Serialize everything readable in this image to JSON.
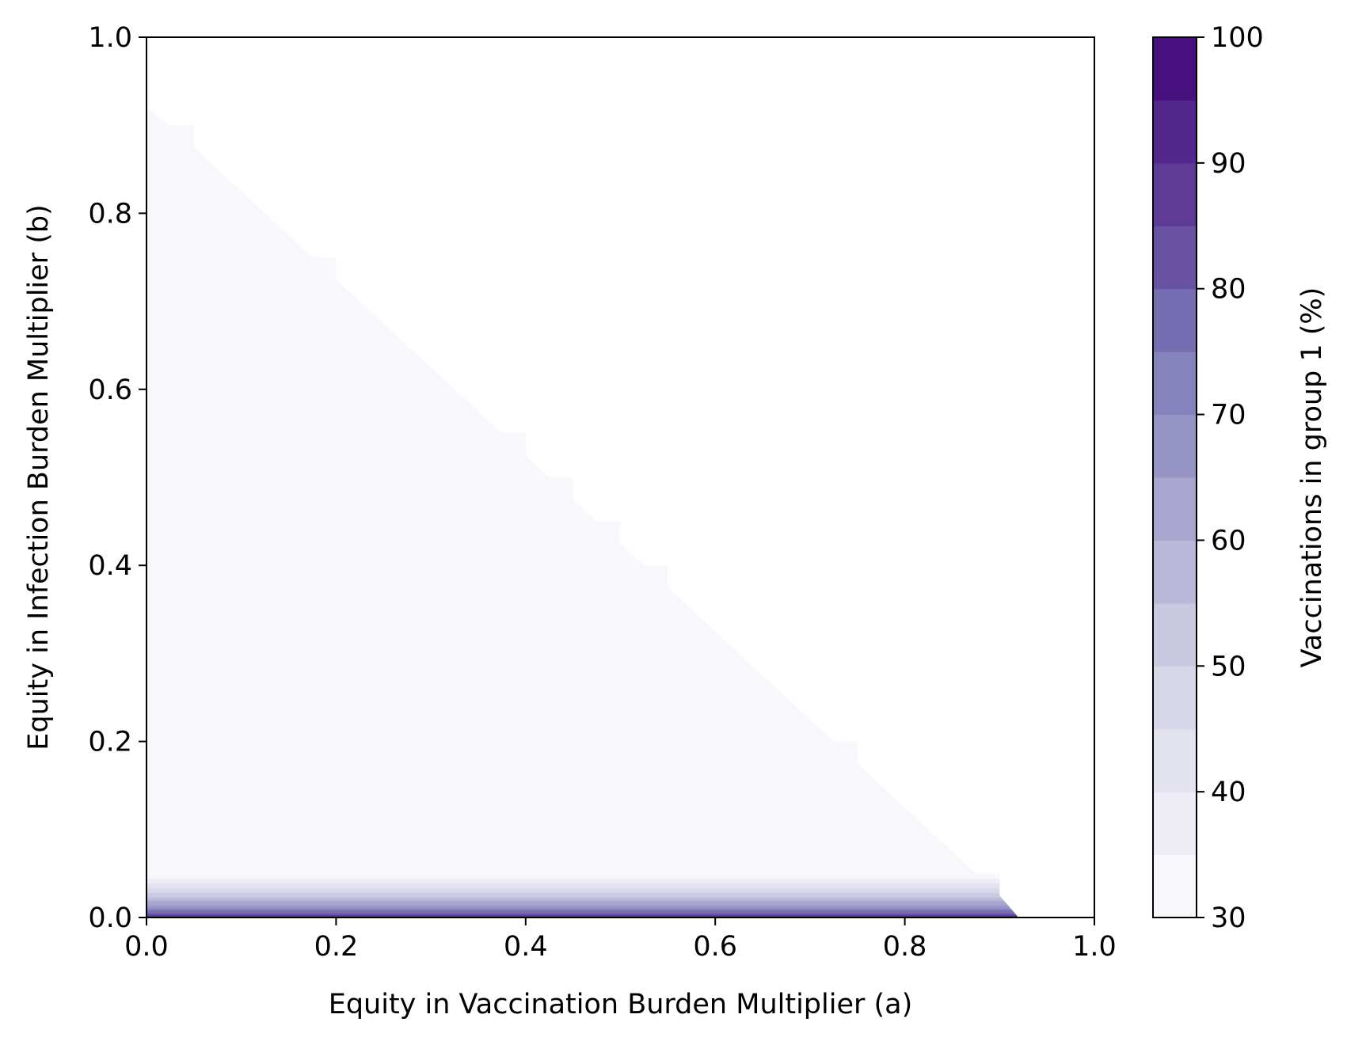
{
  "chart_data": {
    "type": "heatmap",
    "xlabel": "Equity in Vaccination Burden Multiplier (a)",
    "ylabel": "Equity in Infection Burden Multiplier (b)",
    "xlim": [
      0.0,
      1.0
    ],
    "ylim": [
      0.0,
      1.0
    ],
    "xticks": [
      "0.0",
      "0.2",
      "0.4",
      "0.6",
      "0.8",
      "1.0"
    ],
    "yticks": [
      "0.0",
      "0.2",
      "0.4",
      "0.6",
      "0.8",
      "1.0"
    ],
    "grid": false,
    "colormap": "Purples",
    "colorbar": {
      "label": "Vaccinations in group 1 (%)",
      "range": [
        30,
        100
      ],
      "ticks": [
        "30",
        "40",
        "50",
        "60",
        "70",
        "80",
        "90",
        "100"
      ],
      "levels": [
        30,
        35,
        40,
        45,
        50,
        55,
        60,
        65,
        70,
        75,
        80,
        85,
        90,
        95,
        100
      ],
      "colors": [
        "#f8f7fb",
        "#eeedf5",
        "#e3e2ef",
        "#d8d7e9",
        "#c9c9e2",
        "#b9b8d9",
        "#a8a6cf",
        "#9795c5",
        "#8582be",
        "#766eb2",
        "#6a52a3",
        "#5f3b97",
        "#53278c",
        "#47107f"
      ]
    },
    "feasible_region_boundary": [
      {
        "a": 0.0,
        "b": 0.92
      },
      {
        "a": 0.025,
        "b": 0.9
      },
      {
        "a": 0.05,
        "b": 0.9
      },
      {
        "a": 0.05,
        "b": 0.875
      },
      {
        "a": 0.175,
        "b": 0.75
      },
      {
        "a": 0.2,
        "b": 0.75
      },
      {
        "a": 0.2,
        "b": 0.725
      },
      {
        "a": 0.375,
        "b": 0.55
      },
      {
        "a": 0.4,
        "b": 0.55
      },
      {
        "a": 0.4,
        "b": 0.525
      },
      {
        "a": 0.425,
        "b": 0.5
      },
      {
        "a": 0.45,
        "b": 0.5
      },
      {
        "a": 0.45,
        "b": 0.475
      },
      {
        "a": 0.475,
        "b": 0.45
      },
      {
        "a": 0.5,
        "b": 0.45
      },
      {
        "a": 0.5,
        "b": 0.425
      },
      {
        "a": 0.525,
        "b": 0.4
      },
      {
        "a": 0.55,
        "b": 0.4
      },
      {
        "a": 0.55,
        "b": 0.375
      },
      {
        "a": 0.725,
        "b": 0.2
      },
      {
        "a": 0.75,
        "b": 0.2
      },
      {
        "a": 0.75,
        "b": 0.175
      },
      {
        "a": 0.875,
        "b": 0.05
      },
      {
        "a": 0.9,
        "b": 0.05
      },
      {
        "a": 0.9,
        "b": 0.025
      },
      {
        "a": 0.92,
        "b": 0.0
      }
    ],
    "region_value": 30,
    "bottom_band": {
      "b_range": [
        0.0,
        0.05
      ],
      "a_range": [
        0.0,
        0.92
      ],
      "value_at_b0": 100,
      "value_at_b_top": 30
    }
  }
}
